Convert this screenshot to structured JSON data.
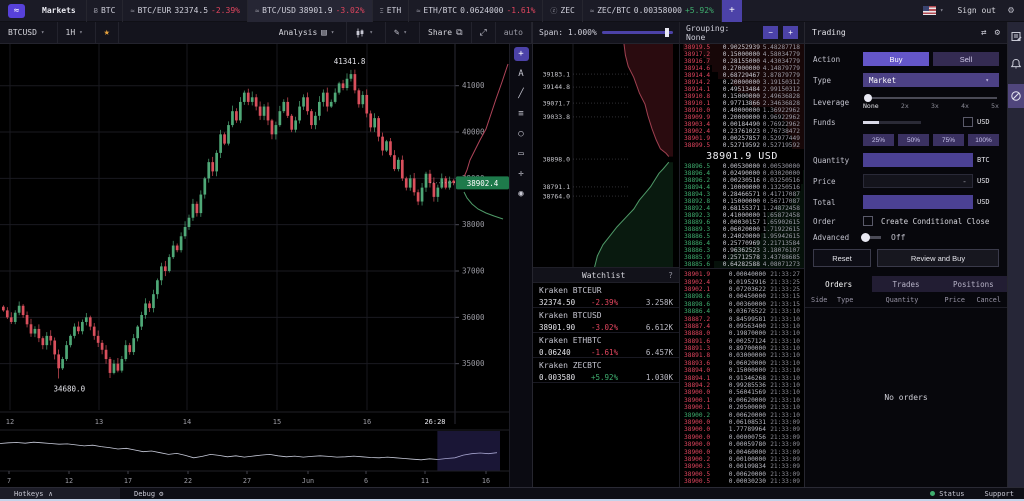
{
  "colors": {
    "accent": "#5741d9",
    "buy": "#6456c8",
    "up": "#3fae6f",
    "down": "#e0455e",
    "candle_up": "#4fa877",
    "candle_down": "#d94f5c",
    "price_tag": "#1e7a4b"
  },
  "topbar": {
    "menu_label": "Markets",
    "tabs": [
      {
        "kind": "asset",
        "icon": "btc-icon",
        "glyph": "Ƀ",
        "label": "BTC"
      },
      {
        "kind": "pair",
        "icon": "kraken-icon",
        "glyph": "≈",
        "label": "BTC/EUR",
        "price": "32374.5",
        "change": "-2.39%",
        "dir": "down"
      },
      {
        "kind": "pair",
        "icon": "kraken-icon",
        "glyph": "≈",
        "label": "BTC/USD",
        "price": "38901.9",
        "change": "-3.02%",
        "dir": "down",
        "active": true
      },
      {
        "kind": "asset",
        "icon": "eth-icon",
        "glyph": "Ξ",
        "label": "ETH"
      },
      {
        "kind": "pair",
        "icon": "kraken-icon",
        "glyph": "≈",
        "label": "ETH/BTC",
        "price": "0.0624000",
        "change": "-1.61%",
        "dir": "down"
      },
      {
        "kind": "asset",
        "icon": "zec-icon",
        "glyph": "ⓩ",
        "label": "ZEC"
      },
      {
        "kind": "pair",
        "icon": "kraken-icon",
        "glyph": "≈",
        "label": "ZEC/BTC",
        "price": "0.00358000",
        "change": "+5.92%",
        "dir": "up"
      }
    ],
    "add_label": "+",
    "sign_out": "Sign out"
  },
  "chart_toolbar": {
    "pair": "BTCUSD",
    "interval": "1H",
    "analysis_label": "Analysis",
    "share_label": "Share",
    "auto_label": "auto"
  },
  "chart_data": [
    {
      "type": "candlestick",
      "title": "BTCUSD 1H",
      "ylim": [
        34000,
        41900
      ],
      "y_ticks": [
        35000,
        36000,
        37000,
        38000,
        39000,
        40000,
        41000
      ],
      "x_labels": [
        "12",
        "13",
        "14",
        "15",
        "16"
      ],
      "x_label_pos": [
        10,
        99,
        187,
        277,
        367
      ],
      "day_x": [
        10,
        99,
        187,
        277,
        367
      ],
      "countdown": "26:28",
      "countdown_x": 435,
      "high_annotation": 41341.8,
      "low_annotation": 34680.0,
      "last_price": "38902.4",
      "high_index": 88,
      "low_index": 14,
      "closes": [
        36150,
        36000,
        35900,
        36100,
        36250,
        36050,
        35850,
        35650,
        35750,
        35550,
        35400,
        35600,
        35500,
        35200,
        34900,
        35100,
        35400,
        35600,
        35800,
        35700,
        35900,
        36000,
        35800,
        35600,
        35450,
        35300,
        35100,
        34800,
        35000,
        34850,
        35100,
        35400,
        35250,
        35550,
        35800,
        36050,
        36300,
        36200,
        36500,
        36800,
        37100,
        37000,
        37300,
        37550,
        37450,
        37750,
        37950,
        38150,
        38450,
        38250,
        38650,
        39000,
        39350,
        39150,
        39550,
        39950,
        39750,
        40150,
        40450,
        40250,
        40650,
        40850,
        40650,
        40750,
        40550,
        40350,
        40550,
        40250,
        39950,
        40150,
        40450,
        40650,
        40350,
        40050,
        40250,
        40550,
        40750,
        40450,
        40150,
        40350,
        40650,
        40850,
        40550,
        40650,
        40850,
        41050,
        40950,
        41150,
        41250,
        40900,
        40600,
        40800,
        40400,
        40100,
        40300,
        39900,
        39600,
        39800,
        39500,
        39200,
        39400,
        39000,
        38800,
        39000,
        38700,
        38500,
        38800,
        39100,
        38900,
        38600,
        38800,
        39000,
        38800,
        38950,
        38902
      ],
      "overlay_ask": [
        [
          508,
          20
        ],
        [
          502,
          38
        ],
        [
          496,
          55
        ],
        [
          491,
          70
        ],
        [
          486,
          85
        ],
        [
          480,
          96
        ],
        [
          475,
          106
        ],
        [
          470,
          116
        ],
        [
          467,
          126
        ],
        [
          464,
          133
        ]
      ],
      "overlay_bid": [
        [
          464,
          148
        ],
        [
          467,
          154
        ],
        [
          472,
          160
        ],
        [
          478,
          165
        ],
        [
          486,
          169
        ],
        [
          494,
          172
        ],
        [
          503,
          175
        ]
      ]
    },
    {
      "type": "line",
      "name": "navigator",
      "x_labels": [
        "7",
        "12",
        "17",
        "22",
        "27",
        "Jun",
        "6",
        "11",
        "16"
      ],
      "x_label_pos": [
        9,
        69,
        128,
        188,
        247,
        308,
        366,
        425,
        486
      ],
      "values": [
        0.28,
        0.26,
        0.25,
        0.27,
        0.24,
        0.26,
        0.28,
        0.3,
        0.29,
        0.32,
        0.35,
        0.33,
        0.37,
        0.4,
        0.44,
        0.42,
        0.47,
        0.52,
        0.5,
        0.55,
        0.6,
        0.57,
        0.63,
        0.7,
        0.66,
        0.6,
        0.63,
        0.67,
        0.64,
        0.68,
        0.65,
        0.62,
        0.6,
        0.64,
        0.67,
        0.65,
        0.68,
        0.66,
        0.64,
        0.66,
        0.68,
        0.67,
        0.65,
        0.67,
        0.69,
        0.7,
        0.68,
        0.7,
        0.72,
        0.74,
        0.76,
        0.73,
        0.75,
        0.72,
        0.7,
        0.62,
        0.58,
        0.56,
        0.58,
        0.55
      ],
      "selection": [
        0.88,
        1.0
      ]
    },
    {
      "type": "area",
      "name": "depth",
      "span_label": "Span: 1.000%",
      "price_labels": [
        {
          "text": "39183.1",
          "y": 0.135
        },
        {
          "text": "39144.8",
          "y": 0.193
        },
        {
          "text": "39071.7",
          "y": 0.265
        },
        {
          "text": "39033.8",
          "y": 0.327
        },
        {
          "text": "38898.0",
          "y": 0.516
        },
        {
          "text": "38791.1",
          "y": 0.641
        },
        {
          "text": "38764.0",
          "y": 0.682
        }
      ],
      "ask_curve": [
        [
          0.65,
          0.0
        ],
        [
          0.66,
          0.05
        ],
        [
          0.68,
          0.1
        ],
        [
          0.72,
          0.15
        ],
        [
          0.76,
          0.22
        ],
        [
          0.8,
          0.27
        ],
        [
          0.82,
          0.32
        ],
        [
          0.85,
          0.38
        ],
        [
          0.88,
          0.43
        ],
        [
          0.91,
          0.47
        ],
        [
          0.95,
          0.49
        ],
        [
          0.97,
          0.505
        ]
      ],
      "bid_curve": [
        [
          0.97,
          0.53
        ],
        [
          0.93,
          0.56
        ],
        [
          0.9,
          0.58
        ],
        [
          0.87,
          0.61
        ],
        [
          0.84,
          0.64
        ],
        [
          0.8,
          0.67
        ],
        [
          0.76,
          0.7
        ],
        [
          0.72,
          0.74
        ],
        [
          0.66,
          0.78
        ],
        [
          0.6,
          0.82
        ],
        [
          0.55,
          0.86
        ],
        [
          0.5,
          0.9
        ],
        [
          0.46,
          0.95
        ],
        [
          0.44,
          1.0
        ]
      ]
    }
  ],
  "orderbook": {
    "grouping_label": "Grouping: None",
    "minus_label": "−",
    "plus_label": "+",
    "mid_price": "38901.9 USD",
    "asks": [
      [
        "38919.5",
        "0.90252939",
        "5.48287718"
      ],
      [
        "38917.2",
        "0.15000000",
        "4.58034779"
      ],
      [
        "38916.7",
        "0.28155000",
        "4.43034779"
      ],
      [
        "38914.6",
        "0.27000000",
        "4.14879779"
      ],
      [
        "38914.4",
        "0.68729467",
        "3.87879779"
      ],
      [
        "38914.2",
        "0.20000000",
        "3.19150312"
      ],
      [
        "38914.1",
        "0.49513484",
        "2.99150312"
      ],
      [
        "38910.8",
        "0.15000000",
        "2.49636828"
      ],
      [
        "38910.1",
        "0.97713866",
        "2.34636828"
      ],
      [
        "38910.0",
        "0.40000000",
        "1.36922962"
      ],
      [
        "38909.9",
        "0.20000000",
        "0.96922962"
      ],
      [
        "38903.4",
        "0.00184490",
        "0.76922962"
      ],
      [
        "38902.4",
        "0.23761023",
        "0.76738472"
      ],
      [
        "38901.9",
        "0.00257857",
        "0.52977449"
      ],
      [
        "38899.5",
        "0.52719592",
        "0.52719592"
      ]
    ],
    "bids": [
      [
        "38896.5",
        "0.00530000",
        "0.00530000"
      ],
      [
        "38896.4",
        "0.02490000",
        "0.03020000"
      ],
      [
        "38896.2",
        "0.00230516",
        "0.03250516"
      ],
      [
        "38894.4",
        "0.10000000",
        "0.13250516"
      ],
      [
        "38894.3",
        "0.28466571",
        "0.41717087"
      ],
      [
        "38892.8",
        "0.15000000",
        "0.56717087"
      ],
      [
        "38892.4",
        "0.68155371",
        "1.24872458"
      ],
      [
        "38892.3",
        "0.41000000",
        "1.65872458"
      ],
      [
        "38889.6",
        "0.00030157",
        "1.65902615"
      ],
      [
        "38889.3",
        "0.06020000",
        "1.71922615"
      ],
      [
        "38886.5",
        "0.24020000",
        "1.95942615"
      ],
      [
        "38886.4",
        "0.25770969",
        "2.21713584"
      ],
      [
        "38886.3",
        "0.96362523",
        "3.18076107"
      ],
      [
        "38885.9",
        "0.25712578",
        "3.43788685"
      ],
      [
        "38885.6",
        "0.64282588",
        "4.08071273"
      ]
    ]
  },
  "watchlist": {
    "title": "Watchlist",
    "help_label": "?",
    "rows": [
      {
        "name": "Kraken BTCEUR",
        "price": "32374.50",
        "change": "-2.39%",
        "dir": "down",
        "volume": "3.258K"
      },
      {
        "name": "Kraken BTCUSD",
        "price": "38901.90",
        "change": "-3.02%",
        "dir": "down",
        "volume": "6.612K"
      },
      {
        "name": "Kraken ETHBTC",
        "price": "0.06240",
        "change": "-1.61%",
        "dir": "down",
        "volume": "6.457K"
      },
      {
        "name": "Kraken ZECBTC",
        "price": "0.003580",
        "change": "+5.92%",
        "dir": "up",
        "volume": "1.030K"
      }
    ]
  },
  "trades_feed": {
    "rows": [
      [
        "38901.9",
        "0.00040000",
        "21:33:27",
        "down"
      ],
      [
        "38902.4",
        "0.01952916",
        "21:33:25",
        "down"
      ],
      [
        "38902.1",
        "0.07203622",
        "21:33:25",
        "down"
      ],
      [
        "38898.6",
        "0.00450000",
        "21:33:15",
        "up"
      ],
      [
        "38898.6",
        "0.00360000",
        "21:33:15",
        "up"
      ],
      [
        "38886.4",
        "0.03676522",
        "21:33:10",
        "up"
      ],
      [
        "38887.2",
        "0.84599581",
        "21:33:10",
        "down"
      ],
      [
        "38887.4",
        "0.09563400",
        "21:33:10",
        "down"
      ],
      [
        "38888.0",
        "0.19870000",
        "21:33:10",
        "down"
      ],
      [
        "38891.6",
        "0.00257124",
        "21:33:10",
        "down"
      ],
      [
        "38891.3",
        "0.89700000",
        "21:33:10",
        "down"
      ],
      [
        "38891.8",
        "0.03000000",
        "21:33:10",
        "down"
      ],
      [
        "38893.6",
        "0.06020000",
        "21:33:10",
        "down"
      ],
      [
        "38894.0",
        "0.15000000",
        "21:33:10",
        "down"
      ],
      [
        "38894.1",
        "0.91346268",
        "21:33:10",
        "down"
      ],
      [
        "38894.2",
        "0.99285536",
        "21:33:10",
        "down"
      ],
      [
        "38900.0",
        "0.56041569",
        "21:33:10",
        "down"
      ],
      [
        "38900.1",
        "0.00620000",
        "21:33:10",
        "down"
      ],
      [
        "38900.1",
        "0.20500000",
        "21:33:10",
        "down"
      ],
      [
        "38900.2",
        "0.00620000",
        "21:33:10",
        "up"
      ],
      [
        "38900.0",
        "0.06108531",
        "21:33:09",
        "down"
      ],
      [
        "38900.0",
        "1.77789964",
        "21:33:09",
        "down"
      ],
      [
        "38900.0",
        "0.00000756",
        "21:33:09",
        "down"
      ],
      [
        "38900.0",
        "0.00059780",
        "21:33:09",
        "down"
      ],
      [
        "38900.0",
        "0.00460000",
        "21:33:09",
        "down"
      ],
      [
        "38900.2",
        "0.00100000",
        "21:33:09",
        "down"
      ],
      [
        "38900.3",
        "0.00109834",
        "21:33:09",
        "down"
      ],
      [
        "38900.5",
        "0.00620000",
        "21:33:09",
        "down"
      ],
      [
        "38900.5",
        "0.00030230",
        "21:33:09",
        "down"
      ]
    ]
  },
  "trading": {
    "title": "Trading",
    "action_label": "Action",
    "buy_label": "Buy",
    "sell_label": "Sell",
    "type_label": "Type",
    "type_value": "Market",
    "leverage_label": "Leverage",
    "leverage_marks": [
      "None",
      "2x",
      "3x",
      "4x",
      "5x"
    ],
    "funds_label": "Funds",
    "funds_unit": "USD",
    "percent_buttons": [
      "25%",
      "50%",
      "75%",
      "100%"
    ],
    "quantity_label": "Quantity",
    "quantity_unit": "BTC",
    "price_label": "Price",
    "price_placeholder": "-",
    "price_unit": "USD",
    "total_label": "Total",
    "total_unit": "USD",
    "order_label": "Order",
    "conditional_close_label": "Create Conditional Close",
    "advanced_label": "Advanced",
    "advanced_state": "Off",
    "reset_label": "Reset",
    "review_label": "Review and Buy"
  },
  "orders_panel": {
    "tabs": [
      "Orders",
      "Trades",
      "Positions"
    ],
    "active_tab": "Orders",
    "columns": [
      "Side",
      "Type",
      "Quantity",
      "Price",
      "Cancel"
    ],
    "empty_label": "No orders"
  },
  "statusbar": {
    "hotkeys_label": "Hotkeys",
    "debug_label": "Debug",
    "status_label": "Status",
    "support_label": "Support"
  }
}
